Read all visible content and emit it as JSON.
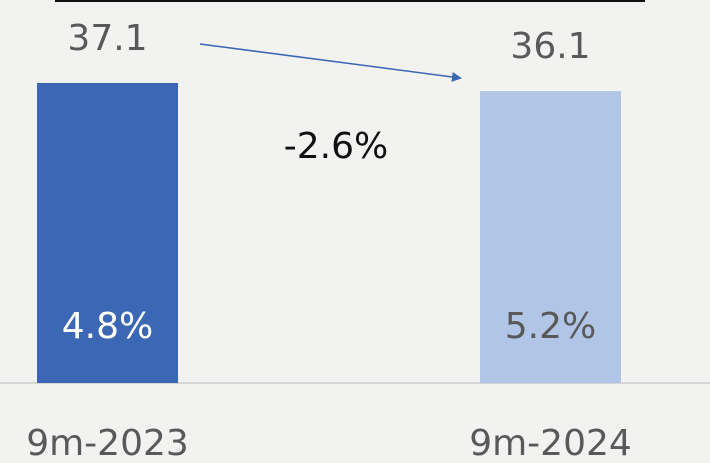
{
  "chart_data": {
    "type": "bar",
    "categories": [
      "9m-2023",
      "9m-2024"
    ],
    "values": [
      37.1,
      36.1
    ],
    "colors": [
      "#3b67b4",
      "#b1c5e7"
    ],
    "bar_labels": [
      "4.8%",
      "5.2%"
    ],
    "bar_label_colors": [
      "#ffffff",
      "#595959"
    ],
    "change_label": "-2.6%"
  }
}
